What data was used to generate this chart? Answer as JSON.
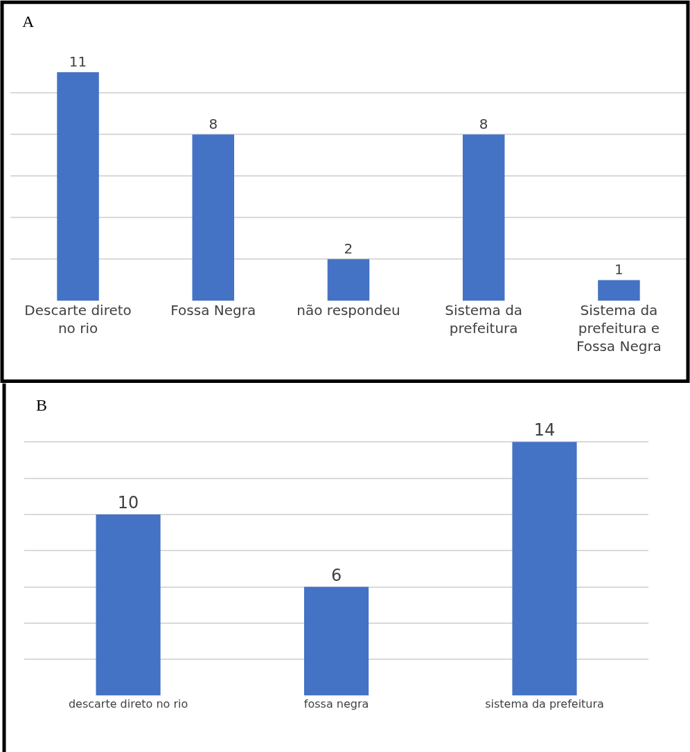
{
  "chart_data": [
    {
      "type": "bar",
      "title": "A",
      "categories": [
        "Descarte direto no rio",
        "Fossa Negra",
        "não respondeu",
        "Sistema da prefeitura",
        "Sistema da prefeitura e Fossa Negra"
      ],
      "values": [
        11,
        8,
        2,
        8,
        1
      ],
      "color": "#4472c4",
      "data_labels": true,
      "grid": "y",
      "tick_labels": "x"
    },
    {
      "type": "bar",
      "title": "B",
      "categories": [
        "descarte direto no rio",
        "fossa negra",
        "sistema da prefeitura"
      ],
      "values": [
        10,
        6,
        14
      ],
      "color": "#4472c4",
      "data_labels": true,
      "grid": "y",
      "tick_labels": "x"
    }
  ]
}
